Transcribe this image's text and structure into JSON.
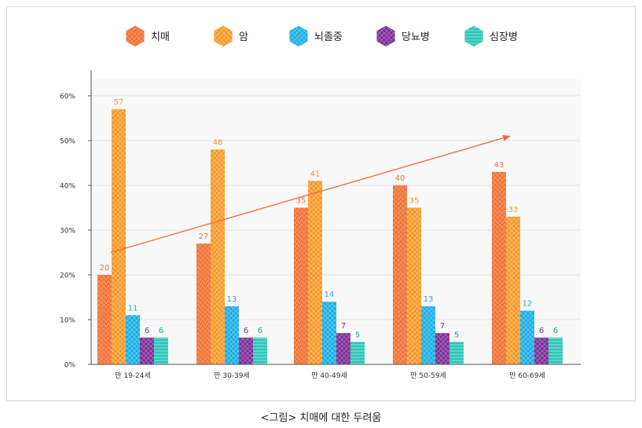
{
  "caption": "<그림> 치매에 대한 두려움",
  "colors": {
    "dementia": "#f07538",
    "cancer": "#f7982a",
    "stroke": "#1eaee3",
    "diabetes": "#7b3294",
    "heart": "#2bc6b8",
    "trend": "#ee6a3a"
  },
  "chart_data": {
    "type": "bar",
    "categories": [
      "만 19-24세",
      "만 30-39세",
      "만 40-49세",
      "만 50-59세",
      "만 60-69세"
    ],
    "series": [
      {
        "name": "치매",
        "values": [
          20,
          27,
          35,
          40,
          43
        ]
      },
      {
        "name": "암",
        "values": [
          57,
          48,
          41,
          35,
          33
        ]
      },
      {
        "name": "뇌졸중",
        "values": [
          11,
          13,
          14,
          13,
          12
        ]
      },
      {
        "name": "당뇨병",
        "values": [
          6,
          6,
          7,
          7,
          6
        ]
      },
      {
        "name": "심장병",
        "values": [
          6,
          6,
          5,
          5,
          6
        ]
      }
    ],
    "y_ticks": [
      "0%",
      "10%",
      "20%",
      "30%",
      "40%",
      "50%",
      "60%"
    ],
    "ylim": [
      0,
      60
    ],
    "grid": true,
    "legend_position": "top-center",
    "trend_arrow": {
      "from": [
        0,
        25
      ],
      "to": [
        4,
        51
      ]
    }
  }
}
